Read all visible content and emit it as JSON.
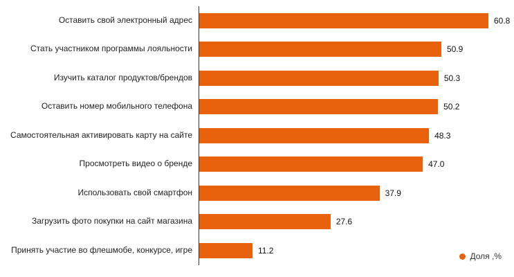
{
  "chart_data": {
    "type": "bar",
    "orientation": "horizontal",
    "title": "",
    "xlabel": "",
    "ylabel": "",
    "xlim": [
      0,
      62
    ],
    "grid": false,
    "legend_position": "bottom-right",
    "bar_color": "#e8610c",
    "axis_line_color": "#333333",
    "categories": [
      "Оставить свой электронный адрес",
      "Стать участником программы лояльности",
      "Изучить каталог продуктов/брендов",
      "Оставить номер мобильного телефона",
      "Самостоятельная активировать карту на сайте",
      "Просмотреть видео о бренде",
      "Использовать свой смартфон",
      "Загрузить фото покупки на сайт магазина",
      "Принять участие во флешмобе, конкурсе, игре"
    ],
    "values": [
      60.8,
      50.9,
      50.3,
      50.2,
      48.3,
      47.0,
      37.9,
      27.6,
      11.2
    ],
    "value_labels": [
      "60.8",
      "50.9",
      "50.3",
      "50.2",
      "48.3",
      "47.0",
      "37.9",
      "27.6",
      "11.2"
    ],
    "series_name": "Доля ,%"
  },
  "legend": {
    "label": "Доля ,%"
  }
}
